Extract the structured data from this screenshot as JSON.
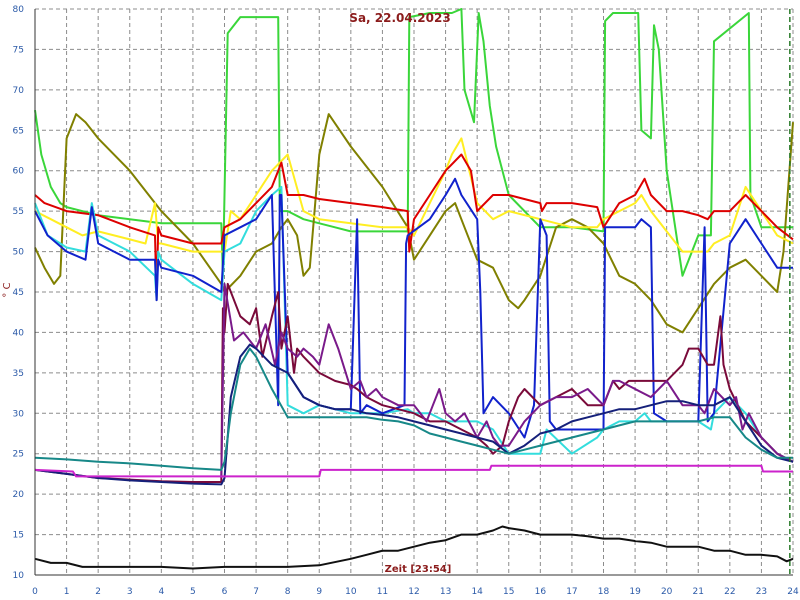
{
  "chart_data": {
    "type": "line",
    "title": "Sa, 22.04.2023",
    "ylabel": "° C",
    "footer": "Zeit [23:54]",
    "xlim": [
      0,
      24
    ],
    "ylim": [
      10,
      80
    ],
    "grid": true,
    "colors": {
      "background": "#ffffff",
      "grid": "#8c8c8c",
      "ticks": "#2b5aa8",
      "title": "#8b1c1c",
      "marker": "#2a7a2a"
    },
    "x_ticks": [
      0,
      1,
      2,
      3,
      4,
      5,
      6,
      7,
      8,
      9,
      10,
      11,
      12,
      13,
      14,
      15,
      16,
      17,
      18,
      19,
      20,
      21,
      22,
      23,
      24
    ],
    "y_ticks": [
      10,
      15,
      20,
      25,
      30,
      35,
      40,
      45,
      50,
      55,
      60,
      65,
      70,
      75,
      80
    ],
    "current_time": 23.9,
    "series": [
      {
        "color": "#3ad63a",
        "x": [
          0,
          0.2,
          0.5,
          0.8,
          1,
          2,
          3,
          4,
          5,
          5.9,
          5.95,
          6.1,
          6.5,
          7.2,
          7.7,
          7.75,
          8,
          8.5,
          9,
          9.5,
          10,
          11,
          11.8,
          11.85,
          12.5,
          13.2,
          13.5,
          13.6,
          13.9,
          14.05,
          14.2,
          14.4,
          14.6,
          15,
          16,
          17,
          18,
          18.05,
          18.3,
          19.1,
          19.2,
          19.5,
          19.6,
          19.75,
          20,
          20.5,
          21,
          21.4,
          21.5,
          22.6,
          22.65,
          23,
          23.5,
          24
        ],
        "y": [
          67.5,
          62,
          58,
          56,
          55.5,
          54.5,
          54,
          53.5,
          53.5,
          53.5,
          47,
          77,
          79,
          79,
          79,
          55,
          55,
          54,
          53.5,
          53,
          52.5,
          52.5,
          52.5,
          79,
          79.5,
          79.5,
          80,
          70,
          66,
          79.5,
          76,
          68,
          63,
          57,
          53,
          53,
          52.5,
          78.5,
          79.5,
          79.5,
          65,
          64,
          78,
          75,
          60,
          47,
          52,
          52,
          76,
          79.5,
          57,
          53,
          53,
          53
        ]
      },
      {
        "color": "#808000",
        "x": [
          0,
          0.3,
          0.6,
          0.8,
          1,
          1.3,
          1.6,
          2,
          3,
          4,
          5,
          5.9,
          6,
          6.5,
          7,
          7.5,
          7.8,
          8,
          8.3,
          8.5,
          8.7,
          9,
          9.3,
          10,
          11,
          11.8,
          12,
          12.5,
          13,
          13.3,
          13.6,
          14,
          14.5,
          15,
          15.3,
          15.5,
          16,
          16.5,
          17,
          17.5,
          18,
          18.5,
          19,
          19.5,
          20,
          20.5,
          21,
          21.5,
          22,
          22.5,
          23,
          23.5,
          23.7,
          24
        ],
        "y": [
          50.5,
          48,
          46,
          47,
          64,
          67,
          66,
          64,
          60,
          55,
          51,
          46,
          45,
          47,
          50,
          51,
          53,
          54,
          52,
          47,
          48,
          62,
          67,
          63,
          58,
          53,
          49,
          52,
          55,
          56,
          53,
          49,
          48,
          44,
          43,
          44,
          47,
          53,
          54,
          53,
          51,
          47,
          46,
          44,
          41,
          40,
          43,
          46,
          48,
          49,
          47,
          45,
          50,
          66
        ]
      },
      {
        "color": "#ffee22",
        "x": [
          0,
          0.5,
          1,
          1.5,
          2,
          2.5,
          3,
          3.5,
          3.8,
          3.9,
          4,
          5,
          6,
          6.2,
          6.5,
          7,
          7.5,
          8,
          8.5,
          9,
          10,
          11,
          11.8,
          12,
          12.5,
          13,
          13.2,
          13.5,
          14,
          14.5,
          15,
          16,
          17,
          17.8,
          18,
          18.5,
          19,
          19.2,
          19.5,
          20,
          20.5,
          21,
          21.3,
          21.5,
          22,
          22.5,
          23,
          23.5,
          24
        ],
        "y": [
          55,
          54,
          53,
          52,
          52.5,
          52,
          51.5,
          51,
          56,
          51,
          51,
          50,
          50,
          55,
          54,
          57,
          60,
          62,
          55,
          54,
          53.5,
          53,
          53,
          52,
          56,
          60,
          62,
          64,
          56,
          54,
          55,
          54,
          53,
          53,
          54,
          55,
          56,
          57,
          55,
          52.5,
          50,
          50,
          50,
          51,
          52,
          58,
          55,
          52,
          51
        ]
      },
      {
        "color": "#dd0000",
        "x": [
          0,
          0.3,
          1,
          2,
          3,
          3.8,
          3.85,
          3.9,
          4,
          5,
          5.9,
          6,
          6.5,
          7,
          7.5,
          7.8,
          8,
          8.5,
          9,
          10,
          11,
          11.8,
          11.85,
          12,
          12.5,
          13,
          13.5,
          13.8,
          14,
          14.5,
          15,
          16,
          16.05,
          16.2,
          17,
          17.8,
          18,
          18.5,
          19,
          19.3,
          19.5,
          20,
          20.5,
          21,
          21.3,
          21.5,
          22,
          22.5,
          23,
          23.5,
          24
        ],
        "y": [
          57,
          56,
          55,
          54.5,
          53,
          52,
          44,
          53,
          52,
          51,
          51,
          53,
          54,
          56,
          58,
          61,
          57,
          57,
          56.5,
          56,
          55.5,
          55,
          50,
          54,
          57,
          60,
          62,
          60,
          55,
          57,
          57,
          56,
          55,
          56,
          56,
          55.5,
          53,
          56,
          57,
          59,
          57,
          55,
          55,
          54.5,
          54,
          55,
          55,
          57,
          55,
          53,
          51.5
        ]
      },
      {
        "color": "#33dddd",
        "x": [
          0,
          0.4,
          1,
          1.6,
          1.8,
          2,
          2.5,
          3,
          3.8,
          3.85,
          3.9,
          4,
          5,
          5.9,
          6,
          6.5,
          7,
          7.5,
          7.8,
          8,
          8.5,
          9,
          10,
          10.5,
          11,
          11.8,
          12,
          12.5,
          13,
          13.5,
          14,
          14.5,
          15,
          16,
          16.2,
          17,
          17.8,
          18,
          18.5,
          19,
          19.3,
          19.5,
          20,
          20.5,
          21,
          21.4,
          21.5,
          22,
          22.5,
          23,
          23.5,
          24
        ],
        "y": [
          56,
          52,
          50.5,
          50,
          56,
          52,
          51,
          50,
          47,
          44,
          50,
          49,
          46,
          44,
          50,
          51,
          55,
          57,
          58,
          31,
          30,
          31,
          30,
          30,
          30,
          30.5,
          30,
          30,
          29,
          29,
          29,
          28,
          25,
          25,
          28,
          25,
          27,
          28,
          29,
          29,
          30,
          29,
          29,
          29,
          29,
          28,
          30,
          32,
          30,
          27,
          25,
          24
        ]
      },
      {
        "color": "#1122cc",
        "x": [
          0,
          0.4,
          1,
          1.6,
          1.8,
          2,
          2.5,
          3,
          3.8,
          3.85,
          3.9,
          4,
          5,
          5.9,
          6,
          6.5,
          7,
          7.5,
          7.7,
          7.75,
          7.8,
          8,
          8.5,
          9,
          9.5,
          10,
          10.2,
          10.3,
          10.5,
          11,
          11.7,
          11.75,
          11.8,
          12.5,
          13,
          13.3,
          13.5,
          14,
          14.1,
          14.2,
          14.5,
          15,
          15.5,
          15.8,
          16,
          16.2,
          16.3,
          16.5,
          17,
          17.5,
          18,
          18.05,
          18.1,
          19,
          19.2,
          19.5,
          19.6,
          20,
          20.5,
          21,
          21.2,
          21.3,
          21.5,
          22,
          22.5,
          23,
          23.5,
          24
        ],
        "y": [
          55,
          52,
          50,
          49,
          55.5,
          51,
          50,
          49,
          49,
          44,
          49,
          48,
          47,
          45,
          52,
          53,
          54,
          57,
          31,
          57,
          57,
          35,
          32,
          31,
          30.5,
          30.5,
          54,
          30,
          31,
          30,
          31,
          51,
          52,
          54,
          57,
          59,
          57,
          54,
          45,
          30,
          32,
          30,
          27,
          31,
          54,
          52,
          29,
          28,
          28,
          28,
          28,
          53,
          53,
          53,
          54,
          53,
          30,
          29,
          29,
          29,
          53,
          29,
          30,
          51,
          54,
          51,
          48,
          48
        ]
      },
      {
        "color": "#7a0a3a",
        "x": [
          0,
          1,
          2,
          3,
          4,
          5,
          5.9,
          5.95,
          6,
          6.1,
          6.5,
          6.8,
          7,
          7.2,
          7.5,
          7.7,
          7.8,
          8,
          8.2,
          8.3,
          8.5,
          9,
          9.5,
          10,
          10.2,
          10.5,
          11,
          11.5,
          12,
          12.5,
          13,
          13.5,
          14,
          14.3,
          14.5,
          14.8,
          15,
          15.3,
          15.5,
          16,
          16.5,
          17,
          17.5,
          18,
          18.3,
          18.5,
          18.8,
          19,
          19.5,
          20,
          20.5,
          20.7,
          21,
          21.3,
          21.5,
          21.7,
          21.8,
          22,
          22.5,
          23,
          23.5,
          24
        ],
        "y": [
          23,
          22.5,
          22,
          21.8,
          21.6,
          21.5,
          21.5,
          43,
          40,
          46,
          42,
          41,
          43,
          37,
          42,
          45,
          38,
          42,
          35,
          38,
          37,
          35,
          34,
          33.5,
          33,
          32,
          31,
          30.5,
          30,
          29,
          29,
          28,
          27,
          26,
          25,
          26,
          29,
          32,
          33,
          31,
          32,
          33,
          31,
          31,
          34,
          33,
          34,
          34,
          34,
          34,
          36,
          38,
          38,
          36,
          36,
          42,
          36,
          33,
          29,
          27,
          25,
          24
        ]
      },
      {
        "color": "#7a1a8a",
        "x": [
          5.9,
          6,
          6.3,
          6.6,
          7,
          7.3,
          7.6,
          7.8,
          8,
          8.3,
          8.5,
          8.8,
          9,
          9.3,
          9.6,
          10,
          10.3,
          10.5,
          10.8,
          11,
          11.5,
          12,
          12.2,
          12.4,
          12.6,
          12.8,
          13,
          13.3,
          13.6,
          14,
          14.3,
          14.5,
          14.7,
          15,
          15.5,
          16,
          16.5,
          17,
          17.5,
          18,
          18.3,
          18.5,
          19,
          19.5,
          20,
          20.5,
          21,
          21.2,
          21.5,
          22,
          22.2,
          22.4,
          22.6,
          23,
          23.5,
          24
        ],
        "y": [
          22,
          46,
          39,
          40,
          38,
          41,
          36,
          40,
          38,
          37,
          38,
          37,
          36,
          41,
          38,
          33,
          34,
          32,
          33,
          32,
          31,
          31,
          30,
          29,
          31,
          33,
          30,
          29,
          30,
          27,
          29,
          27,
          26,
          26,
          29,
          31,
          32,
          32,
          33,
          31,
          34,
          34,
          33,
          32,
          34,
          31,
          31,
          30,
          33,
          31,
          32,
          28,
          30,
          27,
          25,
          24
        ]
      },
      {
        "color": "#15207a",
        "x": [
          0,
          1,
          2,
          3,
          4,
          5,
          5.9,
          6,
          6.2,
          6.5,
          6.8,
          7,
          7.5,
          8,
          8.5,
          9,
          9.5,
          10,
          10.5,
          11,
          11.5,
          12,
          12.5,
          13,
          13.5,
          14,
          14.5,
          15,
          15.5,
          16,
          16.5,
          17,
          17.5,
          18,
          18.5,
          19,
          19.5,
          20,
          20.5,
          21,
          21.5,
          22,
          22.5,
          23,
          23.5,
          24
        ],
        "y": [
          23,
          22.5,
          22,
          21.7,
          21.5,
          21.3,
          21.2,
          22,
          32,
          37,
          38.5,
          38,
          36,
          35,
          32,
          31,
          30.5,
          30.5,
          30,
          29.8,
          29.5,
          29,
          28.5,
          28,
          27.5,
          27,
          26.5,
          25,
          26,
          27.5,
          28,
          29,
          29.5,
          30,
          30.5,
          30.5,
          31,
          31.5,
          31.5,
          31,
          31,
          32,
          29,
          26,
          24.5,
          24
        ]
      },
      {
        "color": "#178888",
        "x": [
          0,
          1,
          2,
          3,
          4,
          5,
          5.9,
          6,
          6.2,
          6.5,
          6.8,
          7,
          7.5,
          8,
          8.5,
          9,
          9.5,
          10,
          10.5,
          11,
          11.5,
          12,
          12.5,
          13,
          13.5,
          14,
          14.5,
          15,
          15.5,
          16,
          16.5,
          17,
          17.5,
          18,
          18.5,
          19,
          19.5,
          20,
          20.5,
          21,
          21.5,
          22,
          22.5,
          23,
          23.5,
          24
        ],
        "y": [
          24.5,
          24.3,
          24,
          23.8,
          23.5,
          23.2,
          23,
          24,
          30,
          36,
          38,
          37,
          33,
          29.5,
          29.5,
          29.5,
          29.5,
          29.5,
          29.5,
          29.2,
          29,
          28.5,
          27.5,
          27,
          26.5,
          26,
          25.5,
          25,
          25.5,
          26,
          26.5,
          27,
          27.5,
          28,
          28.5,
          29,
          29,
          29,
          29,
          29,
          29.5,
          29.5,
          27,
          25.5,
          24.5,
          24.5
        ]
      },
      {
        "color": "#cc22cc",
        "x": [
          0,
          1.2,
          1.3,
          5.9,
          6,
          9,
          9.05,
          14.4,
          14.45,
          23,
          23.05,
          24
        ],
        "y": [
          23,
          22.8,
          22.2,
          22.2,
          22.2,
          22.2,
          23,
          23,
          23.5,
          23.5,
          22.8,
          22.8
        ]
      },
      {
        "color": "#111111",
        "x": [
          0,
          0.5,
          1,
          1.5,
          2,
          2.5,
          3,
          4,
          5,
          6,
          7,
          8,
          9,
          10,
          10.5,
          11,
          11.5,
          12,
          12.5,
          13,
          13.5,
          14,
          14.5,
          14.8,
          15,
          15.5,
          16,
          16.5,
          17,
          17.5,
          18,
          18.5,
          19,
          19.5,
          20,
          20.5,
          21,
          21.5,
          22,
          22.5,
          23,
          23.5,
          23.8,
          24
        ],
        "y": [
          12,
          11.5,
          11.5,
          11,
          11,
          11,
          11,
          11,
          10.8,
          11,
          11,
          11,
          11.2,
          12,
          12.5,
          13,
          13,
          13.5,
          14,
          14.3,
          15,
          15,
          15.5,
          16,
          15.8,
          15.5,
          15,
          15,
          15,
          14.8,
          14.5,
          14.5,
          14.2,
          14,
          13.5,
          13.5,
          13.5,
          13,
          13,
          12.5,
          12.5,
          12.3,
          11.7,
          12
        ]
      }
    ]
  }
}
